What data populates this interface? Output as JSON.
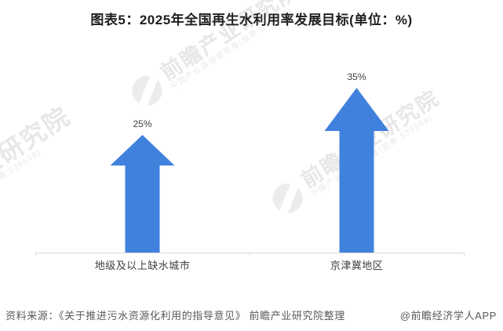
{
  "chart_data": {
    "type": "bar",
    "subtype": "block-up-arrows",
    "title": "图表5：2025年全国再生水利用率发展目标(单位：%)",
    "unit": "%",
    "categories": [
      "地级及以上缺水城市",
      "京津冀地区"
    ],
    "values": [
      25,
      35
    ],
    "data_labels": [
      "25%",
      "35%"
    ],
    "ylim": [
      0,
      40
    ],
    "grid": false,
    "legend": "none",
    "bar_color": "#4181DE",
    "axis_color": "#D9D9D9",
    "label_color": "#404040"
  },
  "footer": {
    "source": "资料来源：《关于推进污水资源化利用的指导意见》 前瞻产业研究院整理",
    "credit": "@前瞻经济学人APP"
  },
  "watermark": {
    "brand": "前瞻产业研究院",
    "subtitle": "中国产业咨询领导者(股票:839599)"
  }
}
